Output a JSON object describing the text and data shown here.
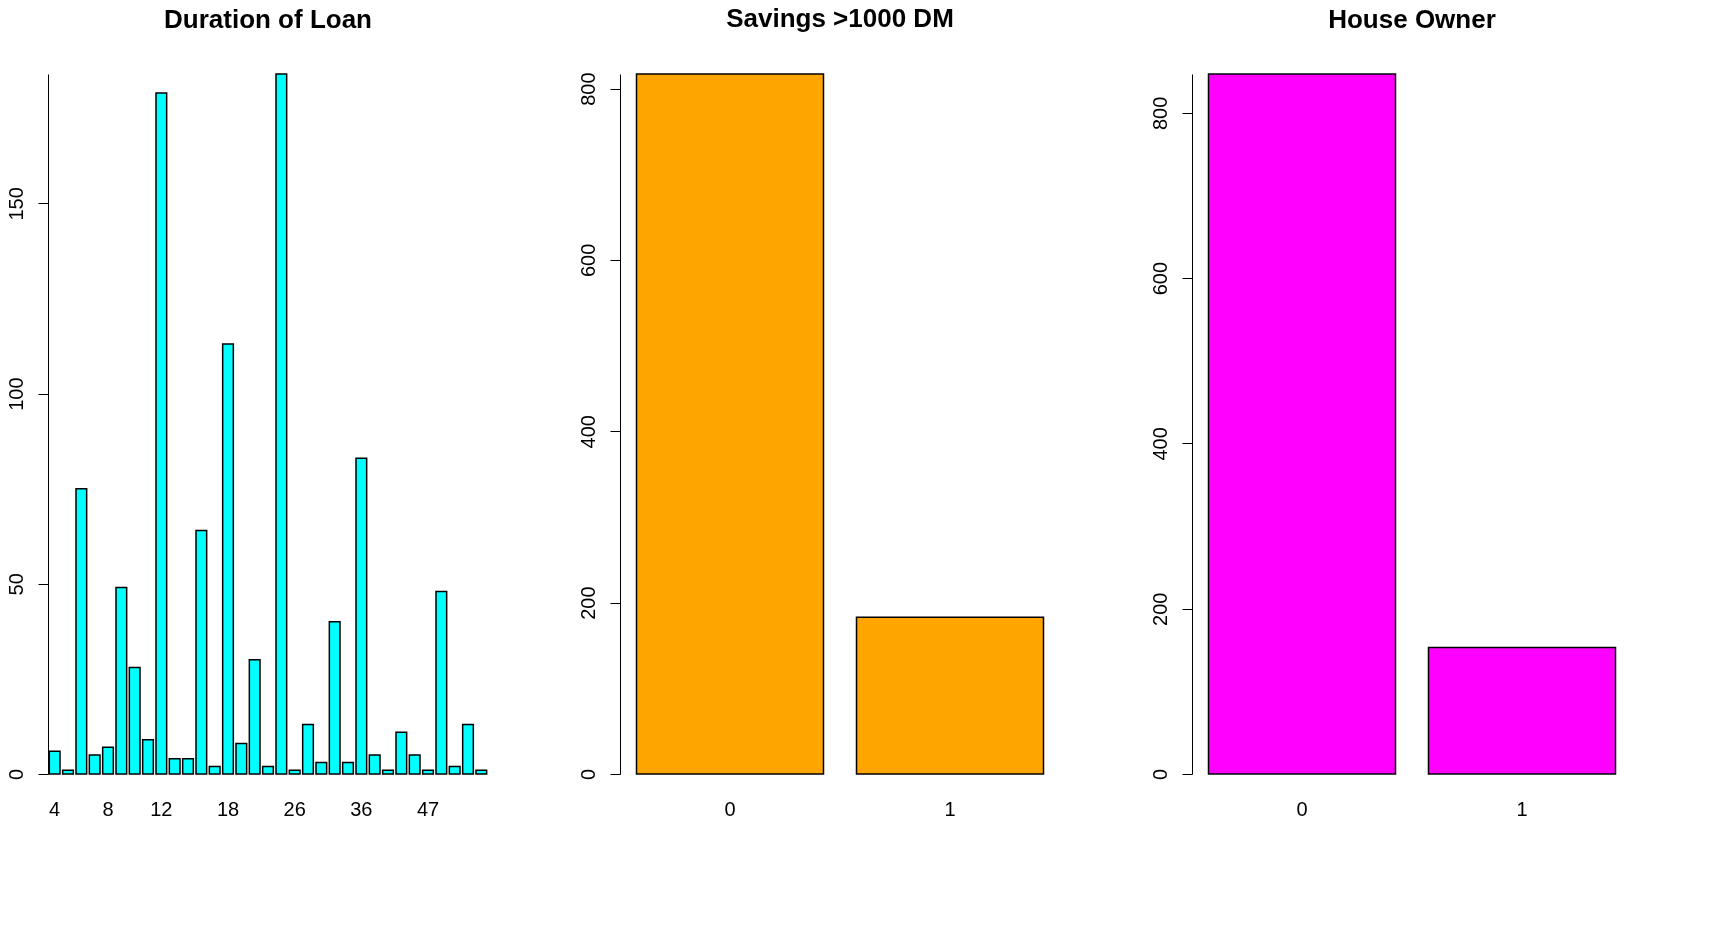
{
  "chart_data": [
    {
      "type": "bar",
      "title": "Duration of Loan",
      "categories": [
        "4",
        null,
        null,
        null,
        "8",
        null,
        null,
        null,
        "12",
        null,
        null,
        null,
        null,
        "18",
        null,
        null,
        null,
        null,
        "26",
        null,
        null,
        null,
        null,
        "36",
        null,
        null,
        null,
        null,
        "47",
        null,
        null,
        null,
        null
      ],
      "values": [
        6,
        1,
        75,
        5,
        7,
        49,
        28,
        9,
        179,
        4,
        4,
        64,
        2,
        113,
        8,
        30,
        2,
        184,
        1,
        13,
        3,
        40,
        3,
        83,
        5,
        1,
        11,
        5,
        1,
        48,
        2,
        13,
        1
      ],
      "color": "#00ffff",
      "ylim": [
        0,
        184
      ],
      "yticks": [
        0,
        50,
        100,
        150
      ],
      "grid": false
    },
    {
      "type": "bar",
      "title": "Savings >1000 DM",
      "categories": [
        "0",
        "1"
      ],
      "values": [
        817,
        183
      ],
      "color": "#ffa500",
      "ylim": [
        0,
        817
      ],
      "yticks": [
        0,
        200,
        400,
        600,
        800
      ],
      "grid": false
    },
    {
      "type": "bar",
      "title": "House Owner",
      "categories": [
        "0",
        "1"
      ],
      "values": [
        847,
        153
      ],
      "color": "#ff00ff",
      "ylim": [
        0,
        847
      ],
      "yticks": [
        0,
        200,
        400,
        600,
        800
      ],
      "grid": false
    }
  ]
}
